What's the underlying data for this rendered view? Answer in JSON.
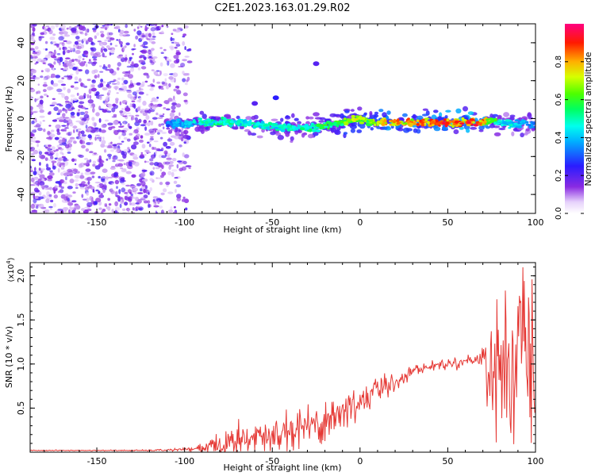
{
  "title": "C2E1.2023.163.01.29.R02",
  "chart_data": [
    {
      "type": "heatmap",
      "xlabel": "Height of straight line (km)",
      "ylabel": "Frequency (Hz)",
      "xlim": [
        -188,
        100
      ],
      "ylim": [
        -50,
        50
      ],
      "xticks": [
        -150,
        -100,
        -50,
        0,
        50,
        100
      ],
      "yticks": [
        -40,
        -20,
        0,
        20,
        40
      ],
      "xtick_labels": [
        "-150",
        "-100",
        "-50",
        "0",
        "50",
        "100"
      ],
      "ytick_labels": [
        "-40",
        "-20",
        "0",
        "20",
        "40"
      ],
      "colorbar": {
        "label": "Normalized spectral amplitude",
        "range": [
          0,
          1
        ],
        "ticks": [
          0.0,
          0.2,
          0.4,
          0.6,
          0.8
        ],
        "tick_labels": [
          "0.0",
          "0.2",
          "0.4",
          "0.6",
          "0.8"
        ],
        "colormap": "rainbow (white-violet-blue-cyan-green-yellow-red)"
      },
      "noise_region_x": [
        -188,
        -97
      ],
      "ridge": {
        "x": [
          -110,
          -100,
          -90,
          -80,
          -70,
          -60,
          -50,
          -40,
          -30,
          -20,
          -15,
          -10,
          -5,
          0,
          5,
          10,
          20,
          30,
          40,
          50,
          60,
          70,
          75,
          80,
          90,
          100
        ],
        "frequency": [
          -3,
          -3,
          -2,
          -2,
          -2,
          -3,
          -4,
          -5,
          -5,
          -4,
          -3,
          -2,
          -1,
          0,
          -2,
          -2,
          -2,
          -2,
          -2,
          -2,
          -2,
          -2,
          -1,
          -2,
          -3,
          -3
        ],
        "amplitude": [
          0.35,
          0.45,
          0.5,
          0.55,
          0.5,
          0.5,
          0.5,
          0.55,
          0.55,
          0.6,
          0.6,
          0.65,
          0.7,
          0.75,
          0.65,
          0.8,
          0.85,
          0.85,
          0.9,
          0.92,
          0.93,
          0.9,
          0.7,
          0.5,
          0.45,
          0.4
        ]
      },
      "isolated_blobs": [
        {
          "x": -25,
          "frequency": 29,
          "amplitude": 0.2
        },
        {
          "x": -48,
          "frequency": 11,
          "amplitude": 0.25
        },
        {
          "x": -60,
          "frequency": 8,
          "amplitude": 0.2
        }
      ]
    },
    {
      "type": "line",
      "xlabel": "Height of straight line (km)",
      "ylabel": "SNR (10 * v/v)",
      "yscale_label": "(x10",
      "yscale_exp": "4",
      "yscale_close": ")",
      "xlim": [
        -188,
        100
      ],
      "ylim": [
        0,
        2.15
      ],
      "xticks": [
        -150,
        -100,
        -50,
        0,
        50,
        100
      ],
      "yticks": [
        0.5,
        1.0,
        1.5,
        2.0
      ],
      "xtick_labels": [
        "-150",
        "-100",
        "-50",
        "0",
        "50",
        "100"
      ],
      "ytick_labels": [
        "0.5",
        "1.0",
        "1.5",
        "2.0"
      ],
      "color": "#e53935",
      "series": [
        {
          "x": [
            -188,
            -150,
            -120,
            -100,
            -95,
            -90,
            -85,
            -80,
            -75,
            -70,
            -65,
            -60,
            -55,
            -50,
            -45,
            -40,
            -35,
            -30,
            -25,
            -20,
            -15,
            -10,
            -5,
            0,
            5,
            10,
            15,
            20,
            25,
            30,
            35,
            40,
            45,
            50,
            55,
            60,
            65,
            70,
            72,
            75,
            80,
            85,
            90,
            95,
            100
          ],
          "mean": [
            0.02,
            0.02,
            0.02,
            0.03,
            0.03,
            0.04,
            0.06,
            0.08,
            0.1,
            0.12,
            0.14,
            0.16,
            0.18,
            0.2,
            0.22,
            0.25,
            0.28,
            0.3,
            0.33,
            0.36,
            0.4,
            0.45,
            0.5,
            0.58,
            0.65,
            0.7,
            0.75,
            0.8,
            0.86,
            0.92,
            0.95,
            0.97,
            0.99,
            1.0,
            1.02,
            1.03,
            1.05,
            1.08,
            1.05,
            0.95,
            0.95,
            1.0,
            1.05,
            1.05,
            1.0
          ],
          "noise": [
            0.003,
            0.003,
            0.004,
            0.01,
            0.02,
            0.04,
            0.07,
            0.08,
            0.09,
            0.1,
            0.1,
            0.11,
            0.11,
            0.12,
            0.12,
            0.12,
            0.13,
            0.13,
            0.14,
            0.15,
            0.15,
            0.14,
            0.13,
            0.12,
            0.12,
            0.1,
            0.08,
            0.06,
            0.05,
            0.04,
            0.03,
            0.03,
            0.03,
            0.03,
            0.03,
            0.03,
            0.04,
            0.08,
            0.2,
            0.45,
            0.45,
            0.5,
            0.55,
            0.55,
            0.55
          ]
        }
      ]
    }
  ]
}
